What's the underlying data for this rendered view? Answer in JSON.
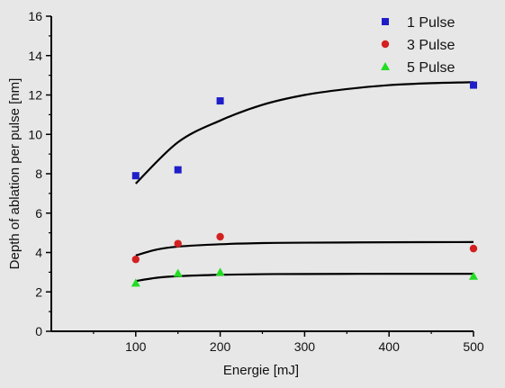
{
  "chart_data": {
    "type": "scatter",
    "xlabel": "Energie [mJ]",
    "ylabel": "Depth of ablation per pulse [nm]",
    "xlim": [
      0,
      500
    ],
    "ylim": [
      0,
      16
    ],
    "x_ticks": [
      100,
      200,
      300,
      400,
      500
    ],
    "y_ticks": [
      0,
      2,
      4,
      6,
      8,
      10,
      12,
      14,
      16
    ],
    "grid": false,
    "legend_position": "top-right",
    "series": [
      {
        "name": "1 Pulse",
        "marker": "square",
        "color": "#1e1ec8",
        "x": [
          100,
          150,
          200,
          500
        ],
        "y": [
          7.9,
          8.2,
          11.7,
          12.5
        ],
        "fit": {
          "x": [
            100,
            150,
            200,
            250,
            300,
            350,
            400,
            450,
            500
          ],
          "y": [
            7.5,
            9.6,
            10.7,
            11.5,
            12.0,
            12.3,
            12.5,
            12.6,
            12.65
          ]
        }
      },
      {
        "name": "3 Pulse",
        "marker": "circle",
        "color": "#d42020",
        "x": [
          100,
          150,
          200,
          500
        ],
        "y": [
          3.65,
          4.45,
          4.8,
          4.2
        ],
        "fit": {
          "x": [
            100,
            125,
            150,
            200,
            250,
            300,
            400,
            500
          ],
          "y": [
            3.85,
            4.15,
            4.3,
            4.42,
            4.48,
            4.5,
            4.52,
            4.53
          ]
        }
      },
      {
        "name": "5 Pulse",
        "marker": "triangle",
        "color": "#22dd22",
        "x": [
          100,
          150,
          200,
          500
        ],
        "y": [
          2.45,
          2.95,
          3.0,
          2.8
        ],
        "fit": {
          "x": [
            100,
            125,
            150,
            200,
            250,
            300,
            400,
            500
          ],
          "y": [
            2.55,
            2.72,
            2.8,
            2.87,
            2.9,
            2.91,
            2.92,
            2.92
          ]
        }
      }
    ]
  }
}
